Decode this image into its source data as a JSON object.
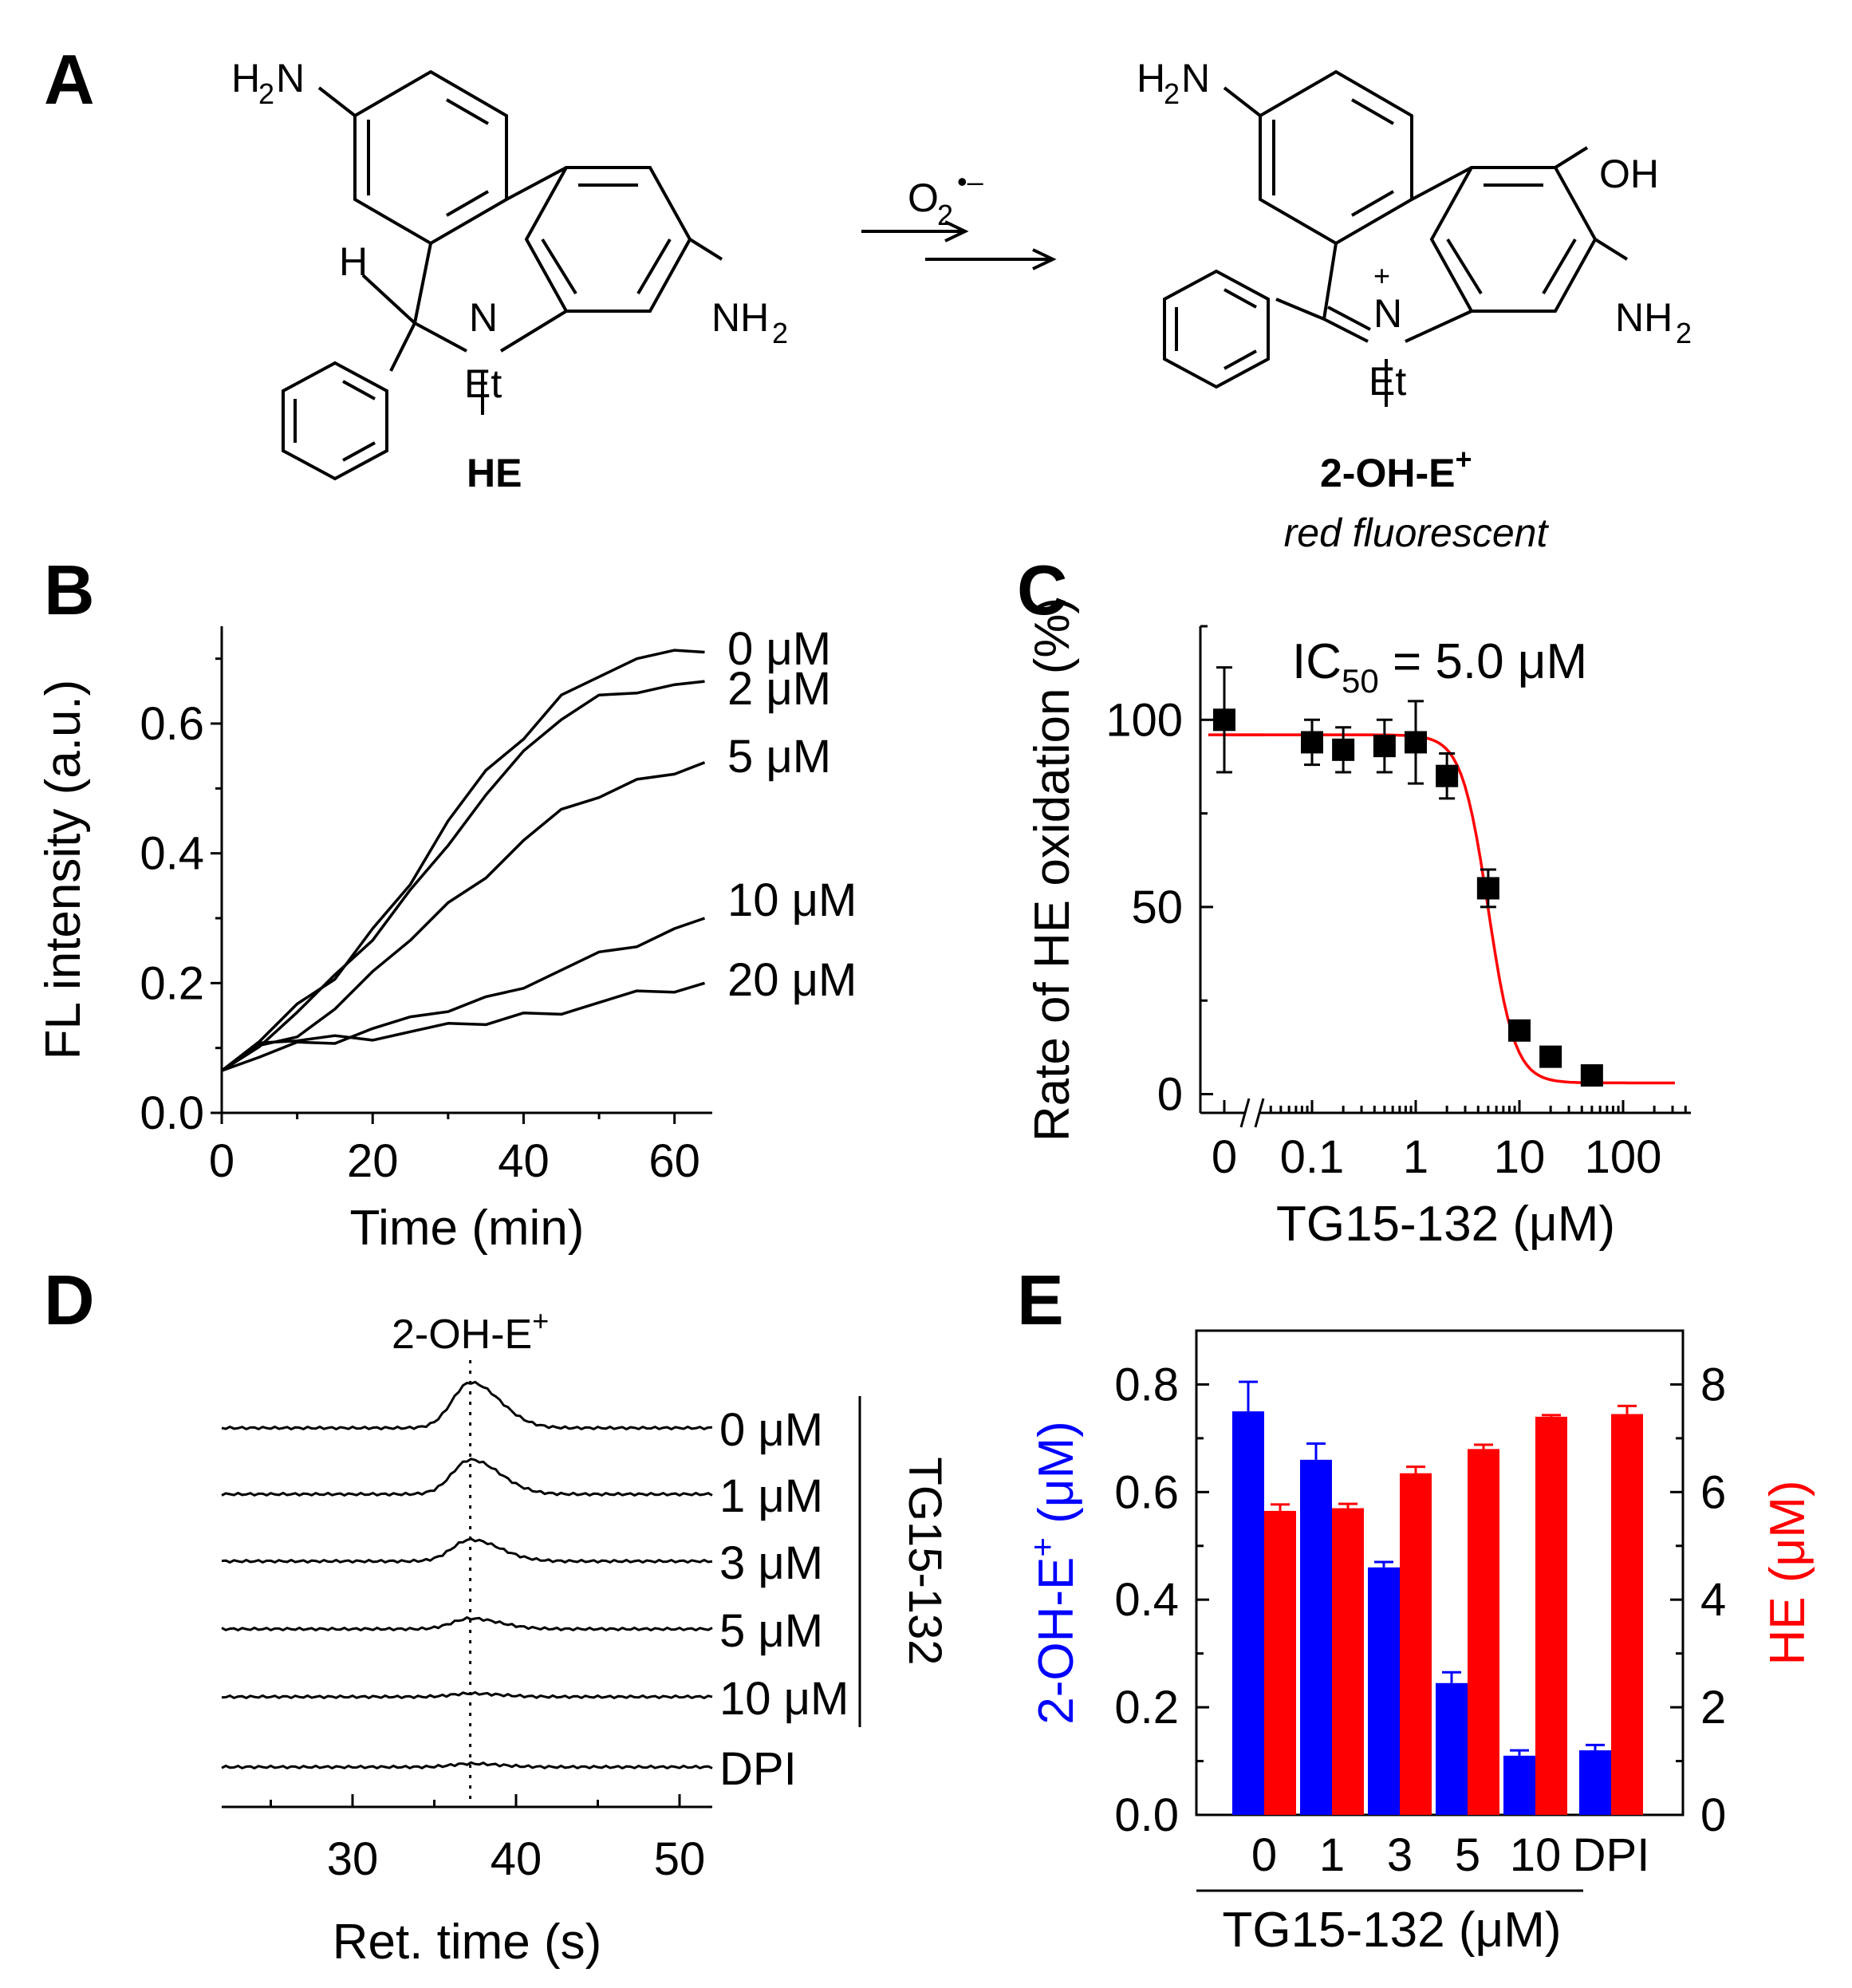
{
  "panels": {
    "a": {
      "label": "A"
    },
    "b": {
      "label": "B"
    },
    "c": {
      "label": "C"
    },
    "d": {
      "label": "D"
    },
    "e": {
      "label": "E"
    }
  },
  "scheme": {
    "reactant": {
      "name": "HE",
      "amine_top": "H",
      "amine_top_sub": "2",
      "amine_top_n": "N",
      "amine_right": "NH",
      "amine_right_sub": "2",
      "n_atom": "N",
      "et": "Et",
      "h_atom": "H"
    },
    "reagent": {
      "o": "O",
      "sub": "2",
      "sup": "•–"
    },
    "product": {
      "name": "2-OH-E",
      "name_sup": "+",
      "descriptor": "red fluorescent",
      "amine_top": "H",
      "amine_top_sub": "2",
      "amine_top_n": "N",
      "amine_right": "NH",
      "amine_right_sub": "2",
      "oh": "OH",
      "n_atom": "N",
      "n_charge": "+",
      "et": "Et"
    }
  },
  "chart_data": [
    {
      "id": "B",
      "type": "line",
      "xlabel": "Time (min)",
      "ylabel": "FL intensity (a.u.)",
      "xlim": [
        0,
        65
      ],
      "ylim": [
        0,
        0.75
      ],
      "xticks": [
        "0",
        "20",
        "40",
        "60"
      ],
      "yticks": [
        "0.0",
        "0.2",
        "0.4",
        "0.6"
      ],
      "x": [
        0,
        5,
        10,
        15,
        20,
        25,
        30,
        35,
        40,
        45,
        50,
        55,
        60,
        64
      ],
      "series": [
        {
          "name": "0 μM",
          "values": [
            0.065,
            0.11,
            0.16,
            0.21,
            0.28,
            0.36,
            0.45,
            0.52,
            0.58,
            0.64,
            0.68,
            0.7,
            0.705,
            0.71
          ]
        },
        {
          "name": "2 μM",
          "values": [
            0.065,
            0.11,
            0.155,
            0.205,
            0.27,
            0.34,
            0.42,
            0.49,
            0.55,
            0.61,
            0.64,
            0.655,
            0.66,
            0.665
          ]
        },
        {
          "name": "5 μM",
          "values": [
            0.065,
            0.1,
            0.125,
            0.16,
            0.21,
            0.27,
            0.32,
            0.37,
            0.42,
            0.46,
            0.49,
            0.51,
            0.53,
            0.54
          ]
        },
        {
          "name": "10 μM",
          "values": [
            0.065,
            0.09,
            0.105,
            0.115,
            0.13,
            0.14,
            0.16,
            0.175,
            0.2,
            0.22,
            0.24,
            0.26,
            0.28,
            0.3
          ]
        },
        {
          "name": "20 μM",
          "values": [
            0.065,
            0.1,
            0.115,
            0.115,
            0.12,
            0.125,
            0.13,
            0.14,
            0.15,
            0.16,
            0.17,
            0.18,
            0.19,
            0.2
          ]
        }
      ]
    },
    {
      "id": "C",
      "type": "scatter",
      "xlabel": "TG15-132 (μM)",
      "ylabel": "Rate of HE oxidation (%)",
      "x_scale": "log",
      "xticks": [
        "0",
        "0.1",
        "1",
        "10",
        "100"
      ],
      "yticks": [
        "0",
        "50",
        "100"
      ],
      "ylim": [
        -5,
        125
      ],
      "annotation": {
        "text": "IC",
        "sub": "50",
        "rest": " = 5.0 μM"
      },
      "points": [
        {
          "x": 0,
          "y": 100,
          "err": 14
        },
        {
          "x": 0.1,
          "y": 94,
          "err": 6
        },
        {
          "x": 0.2,
          "y": 92,
          "err": 6
        },
        {
          "x": 0.5,
          "y": 93,
          "err": 7
        },
        {
          "x": 1,
          "y": 94,
          "err": 11
        },
        {
          "x": 2,
          "y": 85,
          "err": 6
        },
        {
          "x": 5,
          "y": 55,
          "err": 5
        },
        {
          "x": 10,
          "y": 17,
          "err": 2
        },
        {
          "x": 20,
          "y": 10,
          "err": 2
        },
        {
          "x": 50,
          "y": 5,
          "err": 2
        }
      ],
      "fit": {
        "top": 96,
        "bottom": 3,
        "ic50": 5.0,
        "hill": 3.4,
        "color": "#ff0000"
      }
    },
    {
      "id": "D",
      "type": "line",
      "xlabel": "Ret. time (s)",
      "xlim": [
        22,
        52
      ],
      "xticks": [
        "30",
        "40",
        "50"
      ],
      "peak_label": {
        "text": "2-OH-E",
        "sup": "+"
      },
      "peak_x": 37.2,
      "bracket_label": "TG15-132",
      "series": [
        {
          "name": "0 μM",
          "peak_height": 0.95
        },
        {
          "name": "1 μM",
          "peak_height": 0.72
        },
        {
          "name": "3 μM",
          "peak_height": 0.45
        },
        {
          "name": "5 μM",
          "peak_height": 0.22
        },
        {
          "name": "10 μM",
          "peak_height": 0.07
        },
        {
          "name": "DPI",
          "peak_height": 0.07
        }
      ]
    },
    {
      "id": "E",
      "type": "bar",
      "categories": [
        "0",
        "1",
        "3",
        "5",
        "10",
        "DPI"
      ],
      "xlabel": "TG15-132 (μM)",
      "ylabel_left": {
        "text": "2-OH-E",
        "sup": "+",
        "rest": " (μM)",
        "color": "#0000ff"
      },
      "ylabel_right": {
        "text": "HE (μM)",
        "color": "#ff0000"
      },
      "ylim_left": [
        0,
        0.9
      ],
      "ylim_right": [
        0,
        9
      ],
      "yticks_left": [
        "0.0",
        "0.2",
        "0.4",
        "0.6",
        "0.8"
      ],
      "yticks_right": [
        "0",
        "2",
        "4",
        "6",
        "8"
      ],
      "series": [
        {
          "name": "2-OH-E+",
          "axis": "left",
          "color": "#0000ff",
          "values": [
            0.75,
            0.66,
            0.46,
            0.245,
            0.11,
            0.12
          ],
          "errors": [
            0.055,
            0.03,
            0.01,
            0.02,
            0.01,
            0.01
          ]
        },
        {
          "name": "HE",
          "axis": "right",
          "color": "#ff0000",
          "values": [
            5.65,
            5.7,
            6.35,
            6.8,
            7.4,
            7.45
          ],
          "errors": [
            0.12,
            0.08,
            0.12,
            0.08,
            0.03,
            0.15
          ]
        }
      ]
    }
  ]
}
